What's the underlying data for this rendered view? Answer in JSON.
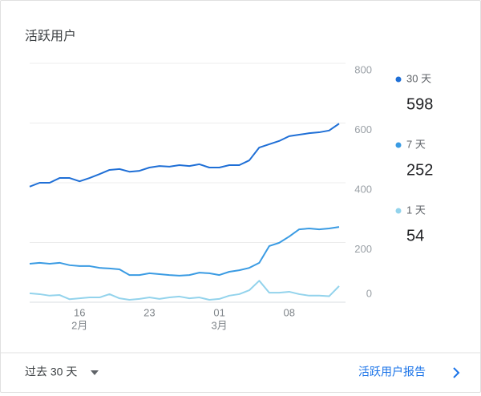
{
  "chart_data": {
    "type": "line",
    "title": "活跃用户",
    "categories": [
      null,
      null,
      null,
      null,
      null,
      "16",
      null,
      null,
      null,
      null,
      null,
      null,
      "23",
      null,
      null,
      null,
      null,
      null,
      null,
      "01",
      null,
      null,
      null,
      null,
      null,
      null,
      "08",
      null,
      null,
      null,
      null,
      null
    ],
    "category_sublabels": [
      null,
      null,
      null,
      null,
      null,
      "2月",
      null,
      null,
      null,
      null,
      null,
      null,
      null,
      null,
      null,
      null,
      null,
      null,
      null,
      "3月",
      null,
      null,
      null,
      null,
      null,
      null,
      null,
      null,
      null,
      null,
      null,
      null
    ],
    "series": [
      {
        "name": "30 天",
        "color": "#1f6fd6",
        "values": [
          387,
          400,
          400,
          416,
          416,
          405,
          416,
          429,
          443,
          446,
          437,
          440,
          451,
          456,
          454,
          459,
          456,
          462,
          451,
          451,
          459,
          459,
          475,
          518,
          529,
          540,
          556,
          561,
          566,
          569,
          575,
          598
        ]
      },
      {
        "name": "7 天",
        "color": "#3a9be3",
        "values": [
          129,
          132,
          129,
          132,
          124,
          121,
          121,
          115,
          113,
          110,
          91,
          91,
          97,
          94,
          91,
          89,
          91,
          99,
          97,
          91,
          102,
          107,
          115,
          132,
          188,
          199,
          220,
          244,
          247,
          244,
          247,
          252
        ]
      },
      {
        "name": "1 天",
        "color": "#93d3ec",
        "values": [
          30,
          27,
          22,
          24,
          10,
          13,
          16,
          16,
          27,
          13,
          8,
          11,
          16,
          11,
          16,
          19,
          13,
          16,
          8,
          11,
          22,
          27,
          40,
          72,
          32,
          32,
          35,
          27,
          22,
          22,
          20,
          54
        ]
      }
    ],
    "ylim": [
      0,
      800
    ],
    "yticks": [
      0,
      200,
      400,
      600,
      800
    ],
    "grid": true,
    "y_axis_side": "right"
  },
  "footer": {
    "range": "过去 30 天",
    "link": "活跃用户报告"
  }
}
